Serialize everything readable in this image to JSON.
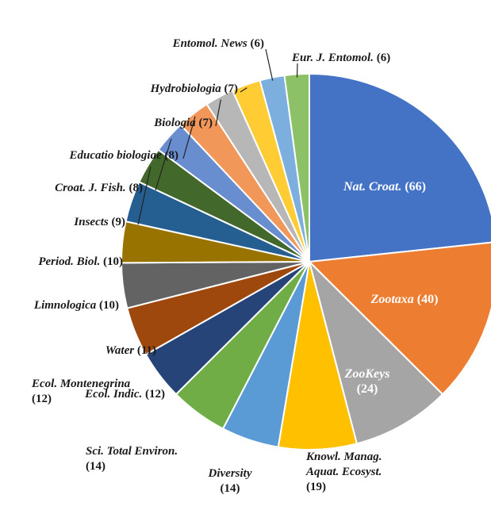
{
  "chart_data": {
    "type": "pie",
    "categories": [
      "Nat. Croat.",
      "Zootaxa",
      "ZooKeys",
      "Knowl. Manag. Aquat. Ecosyst.",
      "Diversity",
      "Sci. Total Environ.",
      "Ecol. Montenegrina",
      "Ecol. Indic.",
      "Water",
      "Limnologica",
      "Period. Biol.",
      "Insects",
      "Croat. J. Fish.",
      "Educatio biologiae",
      "Biologia",
      "Hydrobiologia",
      "Entomol. News",
      "Eur. J. Entomol."
    ],
    "values": [
      66,
      40,
      24,
      19,
      14,
      14,
      12,
      12,
      11,
      10,
      10,
      9,
      8,
      8,
      7,
      7,
      6,
      6
    ],
    "value_labels": [
      "(66)",
      "(40)",
      "(24)",
      "(19)",
      "(14)",
      "(14)",
      "(12)",
      "(12)",
      "(11)",
      "(10)",
      "(10)",
      "(9)",
      "(8)",
      "(8)",
      "(7)",
      "(7)",
      "(6)",
      "(6)"
    ],
    "colors": [
      "#4472c4",
      "#ed7d31",
      "#a5a5a5",
      "#ffc000",
      "#5b9bd5",
      "#70ad47",
      "#264478",
      "#9e480e",
      "#636363",
      "#997300",
      "#255e91",
      "#43682b",
      "#698ed0",
      "#f1975a",
      "#b7b7b7",
      "#ffcd33",
      "#7cafdd",
      "#8cc168"
    ]
  }
}
